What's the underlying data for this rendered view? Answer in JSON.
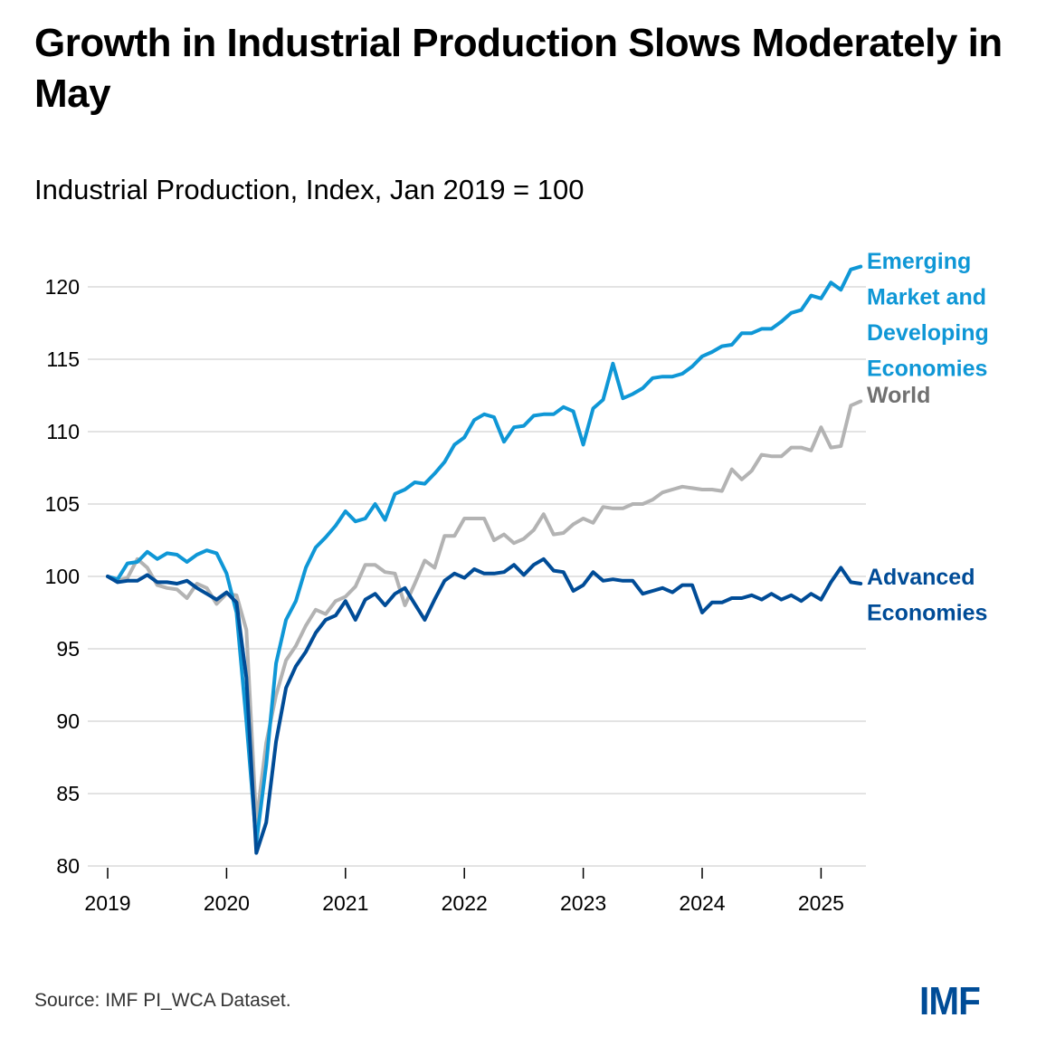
{
  "header": {
    "title": "Growth in Industrial Production Slows Moderately in May",
    "subtitle": "Industrial Production, Index, Jan 2019 = 100"
  },
  "footer": {
    "source": "Source: IMF PI_WCA Dataset.",
    "logo": "IMF"
  },
  "chart_data": {
    "type": "line",
    "title": "Growth in Industrial Production Slows Moderately in May",
    "subtitle": "Industrial Production, Index, Jan 2019 = 100",
    "xlabel": "",
    "ylabel": "",
    "x_start": "2019-01",
    "x_frequency": "monthly",
    "x_end": "2025-05",
    "xticks": [
      "2019",
      "2020",
      "2021",
      "2022",
      "2023",
      "2024",
      "2025"
    ],
    "yticks": [
      80,
      85,
      90,
      95,
      100,
      105,
      110,
      115,
      120
    ],
    "ylim": [
      80,
      122
    ],
    "grid": "horizontal",
    "legend": "direct labels at right end of lines",
    "series": [
      {
        "name": "Emerging Market and Developing Economies",
        "label_lines": [
          "Emerging",
          "Market and",
          "Developing",
          "Economies"
        ],
        "color": "#0f97d6",
        "values": [
          100.0,
          99.8,
          100.9,
          101.0,
          101.7,
          101.2,
          101.6,
          101.5,
          101.0,
          101.5,
          101.8,
          101.6,
          100.2,
          97.5,
          90.0,
          81.6,
          87.0,
          94.0,
          97.0,
          98.3,
          100.6,
          102.0,
          102.7,
          103.5,
          104.5,
          103.8,
          104.0,
          105.0,
          103.9,
          105.7,
          106.0,
          106.5,
          106.4,
          107.1,
          107.9,
          109.1,
          109.6,
          110.8,
          111.2,
          111.0,
          109.3,
          110.3,
          110.4,
          111.1,
          111.2,
          111.2,
          111.7,
          111.4,
          109.1,
          111.6,
          112.2,
          114.7,
          112.3,
          112.6,
          113.0,
          113.7,
          113.8,
          113.8,
          114.0,
          114.5,
          115.2,
          115.5,
          115.9,
          116.0,
          116.8,
          116.8,
          117.1,
          117.1,
          117.6,
          118.2,
          118.4,
          119.4,
          119.2,
          120.3,
          119.8,
          121.2,
          121.4
        ]
      },
      {
        "name": "World",
        "label_lines": [
          "World"
        ],
        "color": "#b3b3b3",
        "label_color": "#707070",
        "values": [
          100.0,
          99.7,
          99.9,
          101.2,
          100.6,
          99.4,
          99.2,
          99.1,
          98.5,
          99.5,
          99.2,
          98.1,
          98.8,
          98.7,
          96.3,
          83.0,
          88.5,
          91.8,
          94.2,
          95.2,
          96.6,
          97.7,
          97.4,
          98.3,
          98.6,
          99.3,
          100.8,
          100.8,
          100.3,
          100.2,
          98.0,
          99.5,
          101.1,
          100.6,
          102.8,
          102.8,
          104.0,
          104.0,
          104.0,
          102.5,
          102.9,
          102.3,
          102.6,
          103.2,
          104.3,
          102.9,
          103.0,
          103.6,
          104.0,
          103.7,
          104.8,
          104.7,
          104.7,
          105.0,
          105.0,
          105.3,
          105.8,
          106.0,
          106.2,
          106.1,
          106.0,
          106.0,
          105.9,
          107.4,
          106.7,
          107.3,
          108.4,
          108.3,
          108.3,
          108.9,
          108.9,
          108.7,
          110.3,
          108.9,
          109.0,
          111.8,
          112.1
        ]
      },
      {
        "name": "Advanced Economies",
        "label_lines": [
          "Advanced",
          "Economies"
        ],
        "color": "#004c97",
        "values": [
          100.0,
          99.6,
          99.7,
          99.7,
          100.1,
          99.6,
          99.6,
          99.5,
          99.7,
          99.2,
          98.8,
          98.4,
          98.9,
          98.2,
          93.0,
          80.9,
          83.0,
          88.6,
          92.3,
          93.8,
          94.8,
          96.1,
          97.0,
          97.3,
          98.3,
          97.0,
          98.4,
          98.8,
          98.0,
          98.8,
          99.2,
          98.1,
          97.0,
          98.4,
          99.7,
          100.2,
          99.9,
          100.5,
          100.2,
          100.2,
          100.3,
          100.8,
          100.1,
          100.8,
          101.2,
          100.4,
          100.3,
          99.0,
          99.4,
          100.3,
          99.7,
          99.8,
          99.7,
          99.7,
          98.8,
          99.0,
          99.2,
          98.9,
          99.4,
          99.4,
          97.5,
          98.2,
          98.2,
          98.5,
          98.5,
          98.7,
          98.4,
          98.8,
          98.4,
          98.7,
          98.3,
          98.8,
          98.4,
          99.6,
          100.6,
          99.6,
          99.5
        ]
      }
    ]
  }
}
